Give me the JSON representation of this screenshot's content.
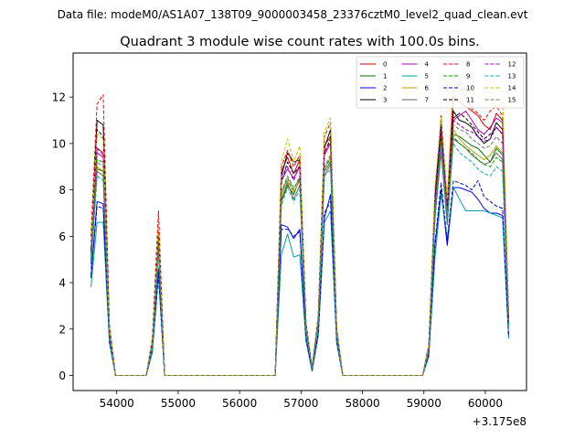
{
  "chart_data": {
    "type": "line",
    "suptitle": "Data file: modeM0/AS1A07_138T09_9000003458_23376cztM0_level2_quad_clean.evt",
    "title": "Quadrant 3 module wise count rates with 100.0s bins.",
    "xlabel": "",
    "ylabel": "",
    "x_offset_label": "+3.175e8",
    "xlim": [
      53290,
      60670
    ],
    "ylim": [
      -0.65,
      13.9
    ],
    "x_ticks": [
      54000,
      55000,
      56000,
      57000,
      58000,
      59000,
      60000
    ],
    "x_tick_labels": [
      "54000",
      "55000",
      "56000",
      "57000",
      "58000",
      "59000",
      "60000"
    ],
    "y_ticks": [
      0,
      2,
      4,
      6,
      8,
      10,
      12
    ],
    "y_tick_labels": [
      "0",
      "2",
      "4",
      "6",
      "8",
      "10",
      "12"
    ],
    "grid": false,
    "legend_position": "top-right",
    "x": [
      53580,
      53680,
      53780,
      53880,
      53980,
      54080,
      54180,
      54280,
      54380,
      54480,
      54580,
      54680,
      54780,
      54880,
      54980,
      55080,
      55180,
      55280,
      55380,
      55480,
      55580,
      55680,
      55780,
      55880,
      55980,
      56080,
      56180,
      56280,
      56380,
      56480,
      56580,
      56680,
      56780,
      56880,
      56980,
      57080,
      57180,
      57280,
      57380,
      57480,
      57580,
      57680,
      57780,
      57880,
      57980,
      58080,
      58180,
      58280,
      58380,
      58480,
      58580,
      58680,
      58780,
      58880,
      58980,
      59080,
      59180,
      59280,
      59380,
      59480,
      59580,
      59680,
      59780,
      59880,
      59980,
      60080,
      60180,
      60280,
      60380
    ],
    "series": [
      {
        "name": "0",
        "color": "#cc0000",
        "dash": false,
        "values": [
          5.6,
          9.8,
          9.6,
          2.0,
          0,
          0,
          0,
          0,
          0,
          0,
          1.5,
          6.0,
          0,
          0,
          0,
          0,
          0,
          0,
          0,
          0,
          0,
          0,
          0,
          0,
          0,
          0,
          0,
          0,
          0,
          0,
          0,
          8.8,
          9.4,
          8.7,
          9.3,
          2.2,
          0.3,
          2.5,
          9.9,
          10.3,
          2.0,
          0,
          0,
          0,
          0,
          0,
          0,
          0,
          0,
          0,
          0,
          0,
          0,
          0,
          0,
          1.2,
          7.5,
          11.0,
          7.2,
          12.0,
          11.8,
          11.6,
          11.4,
          11.2,
          10.8,
          10.6,
          11.3,
          11.0,
          2.5
        ]
      },
      {
        "name": "1",
        "color": "#007700",
        "dash": false,
        "values": [
          4.8,
          8.9,
          8.8,
          1.8,
          0,
          0,
          0,
          0,
          0,
          0,
          1.3,
          5.5,
          0,
          0,
          0,
          0,
          0,
          0,
          0,
          0,
          0,
          0,
          0,
          0,
          0,
          0,
          0,
          0,
          0,
          0,
          0,
          7.5,
          8.2,
          7.8,
          8.5,
          2.0,
          0.3,
          2.3,
          8.8,
          9.2,
          1.8,
          0,
          0,
          0,
          0,
          0,
          0,
          0,
          0,
          0,
          0,
          0,
          0,
          0,
          0,
          1.1,
          6.9,
          9.8,
          6.6,
          10.4,
          10.3,
          10.1,
          9.9,
          9.8,
          9.5,
          9.2,
          9.8,
          9.5,
          2.2
        ]
      },
      {
        "name": "2",
        "color": "#0000ff",
        "dash": false,
        "values": [
          4.2,
          7.5,
          7.4,
          1.5,
          0,
          0,
          0,
          0,
          0,
          0,
          1.1,
          4.6,
          0,
          0,
          0,
          0,
          0,
          0,
          0,
          0,
          0,
          0,
          0,
          0,
          0,
          0,
          0,
          0,
          0,
          0,
          0,
          6.5,
          6.4,
          5.9,
          6.3,
          1.6,
          0.2,
          1.8,
          6.8,
          7.8,
          1.5,
          0,
          0,
          0,
          0,
          0,
          0,
          0,
          0,
          0,
          0,
          0,
          0,
          0,
          0,
          0.9,
          5.6,
          8.0,
          5.6,
          8.1,
          8.1,
          8.0,
          7.9,
          7.6,
          7.2,
          7.0,
          7.0,
          6.9,
          1.6
        ]
      },
      {
        "name": "3",
        "color": "#000000",
        "dash": false,
        "values": [
          5.4,
          11.0,
          10.8,
          2.1,
          0,
          0,
          0,
          0,
          0,
          0,
          1.5,
          6.2,
          0,
          0,
          0,
          0,
          0,
          0,
          0,
          0,
          0,
          0,
          0,
          0,
          0,
          0,
          0,
          0,
          0,
          0,
          0,
          8.6,
          9.6,
          9.2,
          9.3,
          2.3,
          0.3,
          2.5,
          9.8,
          10.6,
          2.0,
          0,
          0,
          0,
          0,
          0,
          0,
          0,
          0,
          0,
          0,
          0,
          0,
          0,
          0,
          1.3,
          7.8,
          10.8,
          7.3,
          11.4,
          11.0,
          10.9,
          10.7,
          10.3,
          10.0,
          10.2,
          10.9,
          10.6,
          2.4
        ]
      },
      {
        "name": "4",
        "color": "#b000b0",
        "dash": false,
        "values": [
          5.2,
          9.6,
          9.4,
          1.9,
          0,
          0,
          0,
          0,
          0,
          0,
          1.4,
          5.9,
          0,
          0,
          0,
          0,
          0,
          0,
          0,
          0,
          0,
          0,
          0,
          0,
          0,
          0,
          0,
          0,
          0,
          0,
          0,
          8.4,
          8.9,
          8.5,
          9.0,
          2.1,
          0.3,
          2.4,
          9.5,
          10.0,
          1.9,
          0,
          0,
          0,
          0,
          0,
          0,
          0,
          0,
          0,
          0,
          0,
          0,
          0,
          0,
          1.2,
          7.3,
          10.6,
          7.0,
          11.0,
          11.2,
          11.4,
          11.0,
          10.6,
          10.4,
          10.7,
          11.1,
          10.9,
          2.4
        ]
      },
      {
        "name": "5",
        "color": "#00a0a0",
        "dash": false,
        "values": [
          3.8,
          6.6,
          6.6,
          1.4,
          0,
          0,
          0,
          0,
          0,
          0,
          1.0,
          4.3,
          0,
          0,
          0,
          0,
          0,
          0,
          0,
          0,
          0,
          0,
          0,
          0,
          0,
          0,
          0,
          0,
          0,
          0,
          0,
          5.2,
          6.1,
          5.1,
          5.2,
          1.5,
          0.2,
          1.7,
          6.6,
          7.1,
          1.4,
          0,
          0,
          0,
          0,
          0,
          0,
          0,
          0,
          0,
          0,
          0,
          0,
          0,
          0,
          0.8,
          5.1,
          7.8,
          5.9,
          8.1,
          7.6,
          7.1,
          7.1,
          7.1,
          7.1,
          7.0,
          6.9,
          6.8,
          1.6
        ]
      },
      {
        "name": "6",
        "color": "#b8a000",
        "dash": false,
        "values": [
          5.0,
          9.0,
          8.8,
          1.8,
          0,
          0,
          0,
          0,
          0,
          0,
          1.3,
          5.6,
          0,
          0,
          0,
          0,
          0,
          0,
          0,
          0,
          0,
          0,
          0,
          0,
          0,
          0,
          0,
          0,
          0,
          0,
          0,
          7.8,
          8.4,
          7.9,
          8.4,
          2.0,
          0.3,
          2.3,
          8.9,
          9.4,
          1.8,
          0,
          0,
          0,
          0,
          0,
          0,
          0,
          0,
          0,
          0,
          0,
          0,
          0,
          0,
          1.1,
          7.0,
          10.0,
          6.8,
          10.6,
          10.2,
          9.9,
          9.7,
          9.5,
          9.3,
          9.5,
          9.9,
          9.6,
          2.2
        ]
      },
      {
        "name": "7",
        "color": "#606060",
        "dash": false,
        "values": [
          4.9,
          8.8,
          8.6,
          1.8,
          0,
          0,
          0,
          0,
          0,
          0,
          1.3,
          5.5,
          0,
          0,
          0,
          0,
          0,
          0,
          0,
          0,
          0,
          0,
          0,
          0,
          0,
          0,
          0,
          0,
          0,
          0,
          0,
          7.6,
          8.3,
          7.6,
          8.2,
          2.0,
          0.3,
          2.2,
          8.6,
          9.1,
          1.8,
          0,
          0,
          0,
          0,
          0,
          0,
          0,
          0,
          0,
          0,
          0,
          0,
          0,
          0,
          1.1,
          6.8,
          9.6,
          6.5,
          10.2,
          10.0,
          9.8,
          9.5,
          9.3,
          9.1,
          9.2,
          9.6,
          9.3,
          2.2
        ]
      },
      {
        "name": "8",
        "color": "#ff0000",
        "dash": true,
        "values": [
          6.0,
          11.7,
          12.1,
          2.2,
          0,
          0,
          0,
          0,
          0,
          0,
          1.6,
          7.1,
          0,
          0,
          0,
          0,
          0,
          0,
          0,
          0,
          0,
          0,
          0,
          0,
          0,
          0,
          0,
          0,
          0,
          0,
          0,
          9.0,
          9.7,
          9.0,
          9.5,
          2.3,
          0.3,
          2.6,
          10.3,
          10.9,
          2.1,
          0,
          0,
          0,
          0,
          0,
          0,
          0,
          0,
          0,
          0,
          0,
          0,
          0,
          0,
          1.3,
          8.0,
          11.2,
          7.5,
          12.3,
          12.6,
          12.0,
          11.5,
          11.3,
          11.0,
          11.4,
          11.6,
          11.2,
          2.6
        ]
      },
      {
        "name": "9",
        "color": "#00a000",
        "dash": true,
        "values": [
          4.9,
          9.3,
          9.2,
          1.9,
          0,
          0,
          0,
          0,
          0,
          0,
          1.4,
          5.7,
          0,
          0,
          0,
          0,
          0,
          0,
          0,
          0,
          0,
          0,
          0,
          0,
          0,
          0,
          0,
          0,
          0,
          0,
          0,
          7.9,
          8.5,
          8.0,
          8.6,
          2.1,
          0.3,
          2.3,
          9.0,
          9.3,
          1.8,
          0,
          0,
          0,
          0,
          0,
          0,
          0,
          0,
          0,
          0,
          0,
          0,
          0,
          0,
          1.1,
          7.1,
          10.3,
          6.9,
          10.3,
          10.0,
          9.8,
          9.6,
          9.3,
          9.1,
          9.0,
          9.4,
          9.2,
          2.2
        ]
      },
      {
        "name": "10",
        "color": "#0000cc",
        "dash": true,
        "values": [
          4.3,
          7.3,
          7.2,
          1.5,
          0,
          0,
          0,
          0,
          0,
          0,
          1.1,
          4.4,
          0,
          0,
          0,
          0,
          0,
          0,
          0,
          0,
          0,
          0,
          0,
          0,
          0,
          0,
          0,
          0,
          0,
          0,
          0,
          6.3,
          6.3,
          6.0,
          6.2,
          1.6,
          0.2,
          1.8,
          7.0,
          7.5,
          1.5,
          0,
          0,
          0,
          0,
          0,
          0,
          0,
          0,
          0,
          0,
          0,
          0,
          0,
          0,
          0.9,
          5.7,
          8.3,
          5.8,
          8.4,
          8.3,
          8.2,
          8.0,
          8.4,
          7.7,
          7.5,
          7.3,
          7.2,
          1.7
        ]
      },
      {
        "name": "11",
        "color": "#000000",
        "dash": true,
        "values": [
          5.3,
          10.6,
          10.3,
          2.0,
          0,
          0,
          0,
          0,
          0,
          0,
          1.5,
          6.1,
          0,
          0,
          0,
          0,
          0,
          0,
          0,
          0,
          0,
          0,
          0,
          0,
          0,
          0,
          0,
          0,
          0,
          0,
          0,
          8.3,
          9.2,
          8.7,
          9.0,
          2.2,
          0.3,
          2.4,
          9.6,
          10.2,
          2.0,
          0,
          0,
          0,
          0,
          0,
          0,
          0,
          0,
          0,
          0,
          0,
          0,
          0,
          0,
          1.2,
          7.6,
          10.6,
          7.2,
          11.1,
          11.3,
          11.1,
          10.8,
          10.5,
          10.2,
          10.4,
          10.7,
          10.4,
          2.4
        ]
      },
      {
        "name": "12",
        "color": "#a000d0",
        "dash": true,
        "values": [
          5.3,
          9.8,
          9.5,
          1.9,
          0,
          0,
          0,
          0,
          0,
          0,
          1.4,
          5.9,
          0,
          0,
          0,
          0,
          0,
          0,
          0,
          0,
          0,
          0,
          0,
          0,
          0,
          0,
          0,
          0,
          0,
          0,
          0,
          8.6,
          9.0,
          8.4,
          9.1,
          2.1,
          0.3,
          2.4,
          9.6,
          10.1,
          1.9,
          0,
          0,
          0,
          0,
          0,
          0,
          0,
          0,
          0,
          0,
          0,
          0,
          0,
          0,
          1.2,
          7.4,
          10.4,
          7.1,
          11.0,
          10.8,
          10.6,
          10.5,
          10.3,
          10.1,
          10.2,
          10.7,
          10.4,
          2.4
        ]
      },
      {
        "name": "13",
        "color": "#00b0a0",
        "dash": true,
        "values": [
          4.6,
          8.6,
          8.4,
          1.7,
          0,
          0,
          0,
          0,
          0,
          0,
          1.2,
          5.3,
          0,
          0,
          0,
          0,
          0,
          0,
          0,
          0,
          0,
          0,
          0,
          0,
          0,
          0,
          0,
          0,
          0,
          0,
          0,
          7.3,
          8.1,
          7.5,
          8.0,
          1.9,
          0.3,
          2.2,
          8.6,
          8.9,
          1.7,
          0,
          0,
          0,
          0,
          0,
          0,
          0,
          0,
          0,
          0,
          0,
          0,
          0,
          0,
          1.0,
          6.8,
          9.8,
          6.7,
          10.0,
          9.6,
          9.4,
          9.2,
          8.9,
          8.7,
          8.6,
          9.0,
          8.8,
          2.1
        ]
      },
      {
        "name": "14",
        "color": "#c8c000",
        "dash": true,
        "values": [
          5.6,
          10.4,
          10.2,
          2.1,
          0,
          0,
          0,
          0,
          0,
          0,
          1.5,
          6.4,
          0,
          0,
          0,
          0,
          0,
          0,
          0,
          0,
          0,
          0,
          0,
          0,
          0,
          0,
          0,
          0,
          0,
          0,
          0,
          9.2,
          10.2,
          9.2,
          9.9,
          2.3,
          0.3,
          2.6,
          10.5,
          11.1,
          2.1,
          0,
          0,
          0,
          0,
          0,
          0,
          0,
          0,
          0,
          0,
          0,
          0,
          0,
          0,
          1.3,
          8.2,
          11.1,
          7.6,
          13.0,
          12.8,
          12.4,
          12.2,
          12.0,
          11.8,
          12.3,
          12.6,
          12.1,
          2.6
        ]
      },
      {
        "name": "15",
        "color": "#707070",
        "dash": true,
        "values": [
          5.0,
          9.2,
          9.0,
          1.8,
          0,
          0,
          0,
          0,
          0,
          0,
          1.3,
          5.6,
          0,
          0,
          0,
          0,
          0,
          0,
          0,
          0,
          0,
          0,
          0,
          0,
          0,
          0,
          0,
          0,
          0,
          0,
          0,
          7.9,
          8.6,
          8.1,
          8.5,
          2.0,
          0.3,
          2.3,
          9.0,
          9.5,
          1.8,
          0,
          0,
          0,
          0,
          0,
          0,
          0,
          0,
          0,
          0,
          0,
          0,
          0,
          0,
          1.1,
          7.1,
          10.1,
          6.9,
          10.8,
          10.6,
          10.5,
          10.2,
          10.0,
          9.8,
          9.9,
          10.3,
          10.0,
          2.3
        ]
      }
    ]
  }
}
